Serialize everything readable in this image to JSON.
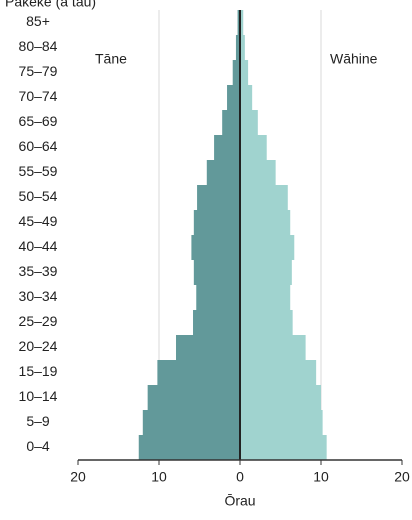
{
  "chart_data": {
    "type": "pyramid",
    "title": "Pakeke (ā tau)",
    "x_label": "Ōrau",
    "categories": [
      "0–4",
      "5–9",
      "10–14",
      "15–19",
      "20–24",
      "25–29",
      "30–34",
      "35–39",
      "40–44",
      "45–49",
      "50–54",
      "55–59",
      "60–64",
      "65–69",
      "70–74",
      "75–79",
      "80–84",
      "85+"
    ],
    "series": [
      {
        "name": "Tāne",
        "color": "#62999a",
        "values": [
          -12.5,
          -12.0,
          -11.4,
          -10.2,
          -7.9,
          -5.8,
          -5.4,
          -5.7,
          -6.0,
          -5.7,
          -5.3,
          -4.1,
          -3.2,
          -2.2,
          -1.6,
          -0.9,
          -0.5,
          -0.3
        ]
      },
      {
        "name": "Wāhine",
        "color": "#a0d3cf",
        "values": [
          10.7,
          10.2,
          10.0,
          9.4,
          8.1,
          6.5,
          6.2,
          6.4,
          6.7,
          6.2,
          5.9,
          4.4,
          3.3,
          2.2,
          1.5,
          1.0,
          0.6,
          0.4
        ]
      }
    ],
    "xlim": [
      -20,
      20
    ],
    "xticks": [
      {
        "value": -20,
        "label": "20"
      },
      {
        "value": -10,
        "label": "10"
      },
      0,
      10,
      20
    ],
    "grid": true
  }
}
